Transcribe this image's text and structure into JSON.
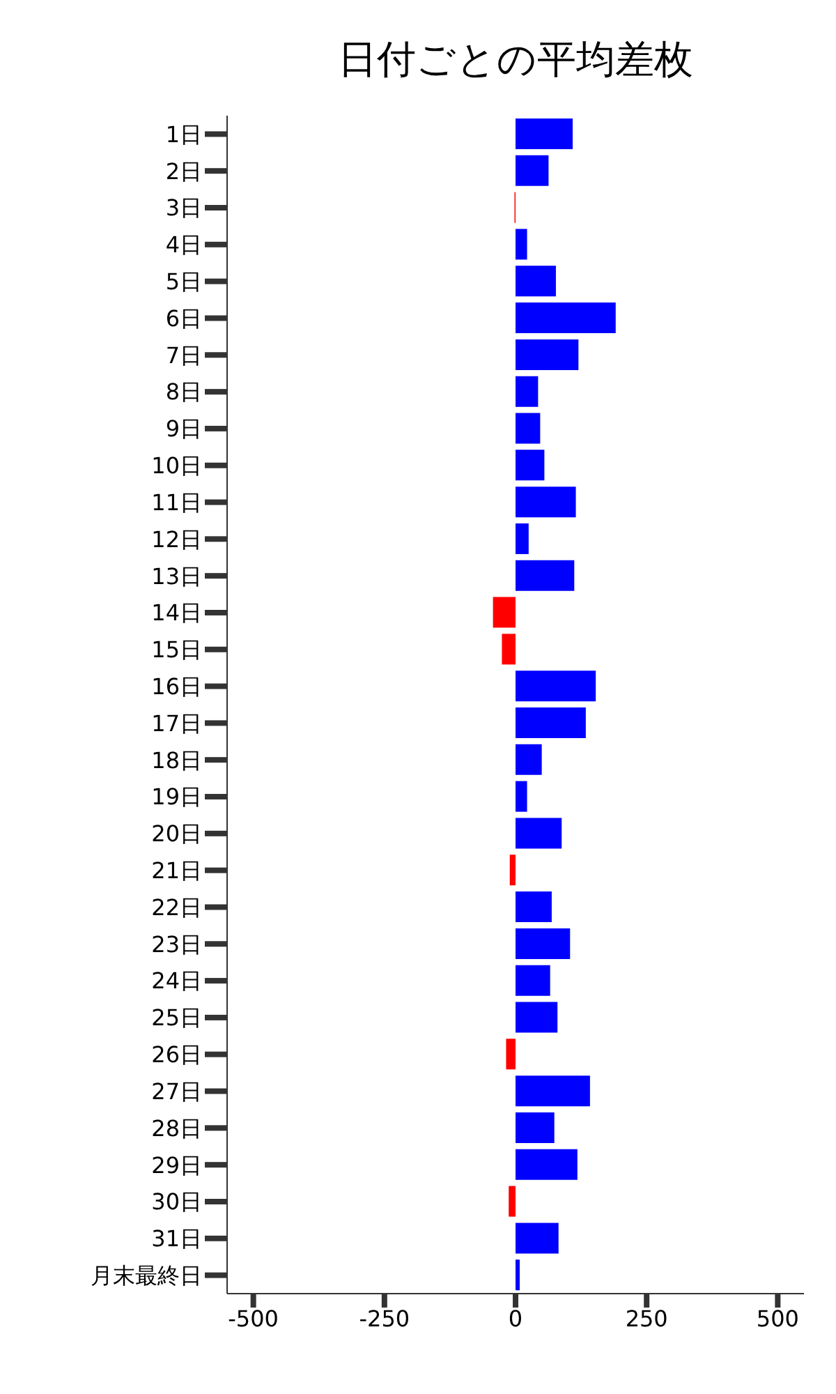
{
  "chart_data": {
    "type": "bar",
    "title": "日付ごとの平均差枚",
    "orientation": "horizontal",
    "categories": [
      "1日",
      "2日",
      "3日",
      "4日",
      "5日",
      "6日",
      "7日",
      "8日",
      "9日",
      "10日",
      "11日",
      "12日",
      "13日",
      "14日",
      "15日",
      "16日",
      "17日",
      "18日",
      "19日",
      "20日",
      "21日",
      "22日",
      "23日",
      "24日",
      "25日",
      "26日",
      "27日",
      "28日",
      "29日",
      "30日",
      "31日",
      "月末最終日"
    ],
    "values": [
      109,
      63,
      -2,
      22,
      77,
      191,
      120,
      43,
      47,
      55,
      115,
      25,
      112,
      -43,
      -26,
      153,
      134,
      50,
      22,
      88,
      -11,
      69,
      104,
      66,
      80,
      -18,
      142,
      74,
      118,
      -13,
      82,
      8
    ],
    "colors": [
      "#0000ff",
      "#0000ff",
      "#ff0000",
      "#0000ff",
      "#0000ff",
      "#0000ff",
      "#0000ff",
      "#0000ff",
      "#0000ff",
      "#0000ff",
      "#0000ff",
      "#0000ff",
      "#0000ff",
      "#ff0000",
      "#ff0000",
      "#0000ff",
      "#0000ff",
      "#0000ff",
      "#0000ff",
      "#0000ff",
      "#ff0000",
      "#0000ff",
      "#0000ff",
      "#0000ff",
      "#0000ff",
      "#ff0000",
      "#0000ff",
      "#0000ff",
      "#0000ff",
      "#ff0000",
      "#0000ff",
      "#0000ff"
    ],
    "xlim": [
      -550,
      550
    ],
    "xticks": [
      -500,
      -250,
      0,
      250,
      500
    ],
    "grid": false,
    "legend": false
  }
}
